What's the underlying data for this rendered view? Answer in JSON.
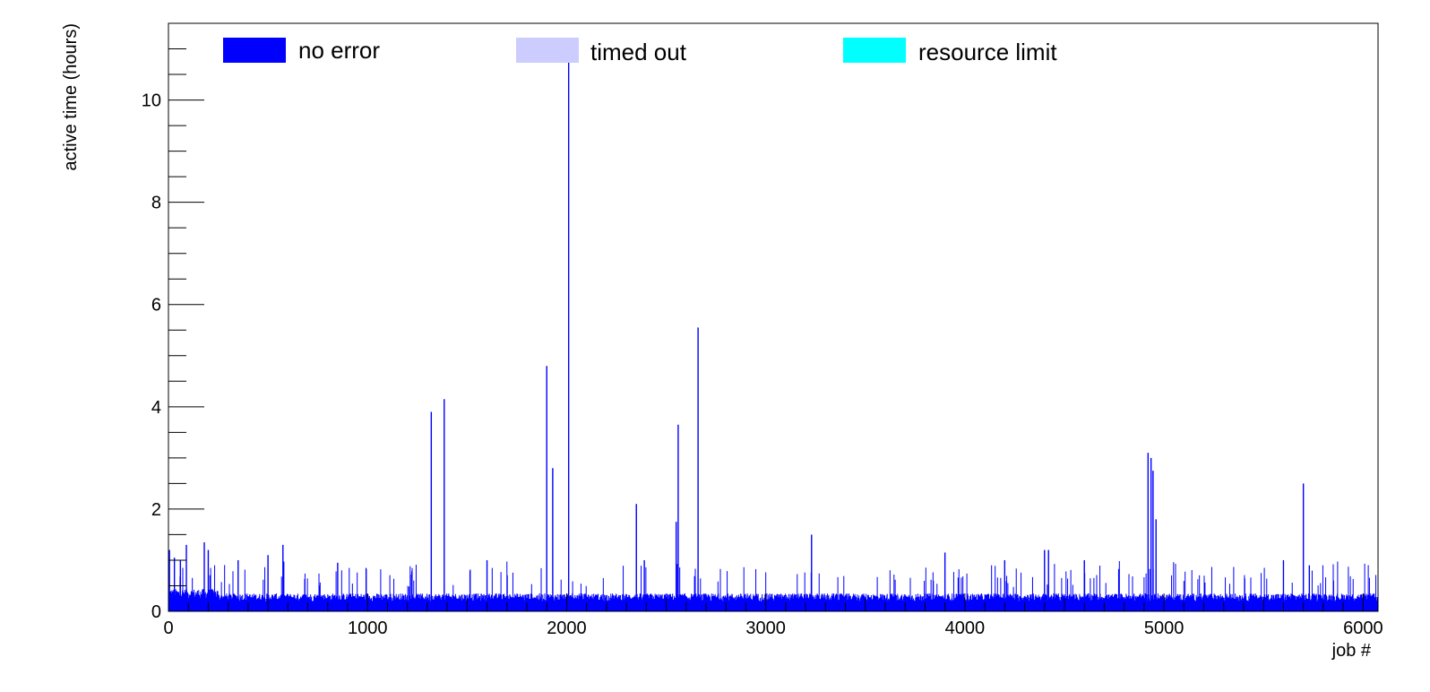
{
  "chart_data": {
    "type": "bar",
    "title": "",
    "xlabel": "job #",
    "ylabel": "active time (hours)",
    "xlim": [
      0,
      6075
    ],
    "ylim": [
      0,
      11.5
    ],
    "x_ticks": [
      0,
      1000,
      2000,
      3000,
      4000,
      5000,
      6000
    ],
    "y_ticks": [
      0,
      2,
      4,
      6,
      8,
      10
    ],
    "grid": false,
    "legend_position": "top",
    "legend": [
      {
        "name": "no error",
        "color": "#0000ff"
      },
      {
        "name": "timed out",
        "color": "#ccccff"
      },
      {
        "name": "resource limit",
        "color": "#00ffff"
      }
    ],
    "series": [
      {
        "name": "no error",
        "color": "#0000ff",
        "baseline_level": 0.35,
        "spikes": [
          {
            "x": 5,
            "y": 1.2
          },
          {
            "x": 30,
            "y": 1.05
          },
          {
            "x": 60,
            "y": 1.0
          },
          {
            "x": 90,
            "y": 1.3
          },
          {
            "x": 180,
            "y": 1.35
          },
          {
            "x": 200,
            "y": 1.2
          },
          {
            "x": 350,
            "y": 1.0
          },
          {
            "x": 500,
            "y": 1.1
          },
          {
            "x": 575,
            "y": 1.3
          },
          {
            "x": 850,
            "y": 0.95
          },
          {
            "x": 1320,
            "y": 3.9
          },
          {
            "x": 1385,
            "y": 4.15
          },
          {
            "x": 1600,
            "y": 1.0
          },
          {
            "x": 1900,
            "y": 4.8
          },
          {
            "x": 1930,
            "y": 2.8
          },
          {
            "x": 2010,
            "y": 10.8
          },
          {
            "x": 2350,
            "y": 2.1
          },
          {
            "x": 2390,
            "y": 1.0
          },
          {
            "x": 2550,
            "y": 1.75
          },
          {
            "x": 2560,
            "y": 3.65
          },
          {
            "x": 2660,
            "y": 5.55
          },
          {
            "x": 3230,
            "y": 1.5
          },
          {
            "x": 3900,
            "y": 1.15
          },
          {
            "x": 4200,
            "y": 1.0
          },
          {
            "x": 4400,
            "y": 1.2
          },
          {
            "x": 4420,
            "y": 1.2
          },
          {
            "x": 4600,
            "y": 1.0
          },
          {
            "x": 4920,
            "y": 3.1
          },
          {
            "x": 4935,
            "y": 3.0
          },
          {
            "x": 4945,
            "y": 2.75
          },
          {
            "x": 4960,
            "y": 1.8
          },
          {
            "x": 5700,
            "y": 2.5
          },
          {
            "x": 5600,
            "y": 1.0
          },
          {
            "x": 5730,
            "y": 0.9
          }
        ]
      },
      {
        "name": "timed out",
        "color": "#ccccff",
        "spikes": []
      },
      {
        "name": "resource limit",
        "color": "#00ffff",
        "spikes": []
      }
    ]
  }
}
